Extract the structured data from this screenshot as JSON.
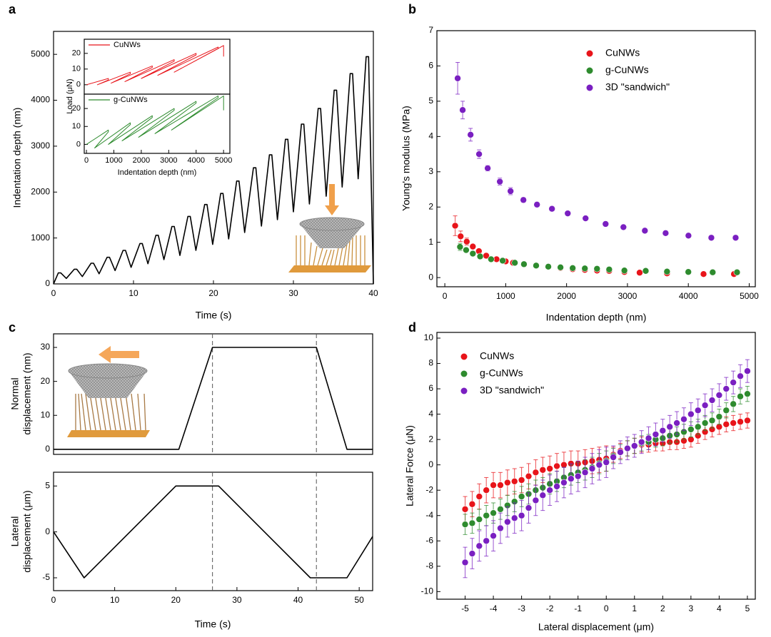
{
  "chart_data": [
    {
      "type": "line",
      "panel_label": "a",
      "x_label": "Time (s)",
      "y_label": "Indentation depth (nm)",
      "xlim": [
        0,
        40
      ],
      "ylim": [
        0,
        5500
      ],
      "xticks": [
        0,
        10,
        20,
        30,
        40
      ],
      "yticks": [
        0,
        1000,
        2000,
        3000,
        4000,
        5000
      ],
      "series": [
        {
          "color": "#000000",
          "x": [
            0,
            0.6,
            0.9,
            1.6,
            2.6,
            2.9,
            3.6,
            4.7,
            5.0,
            5.7,
            6.7,
            7.0,
            7.7,
            8.7,
            9.0,
            9.7,
            10.8,
            11.1,
            11.8,
            12.8,
            13.1,
            13.8,
            14.8,
            15.1,
            15.8,
            16.8,
            17.1,
            17.8,
            18.9,
            19.2,
            19.9,
            20.9,
            21.2,
            21.9,
            22.9,
            23.2,
            23.9,
            25.0,
            25.3,
            26.0,
            27.0,
            27.3,
            28.0,
            29.0,
            29.3,
            30.0,
            31.0,
            31.3,
            32.0,
            33.1,
            33.4,
            34.1,
            35.1,
            35.4,
            36.1,
            37.1,
            37.4,
            38.1,
            39.1,
            39.4,
            40.0
          ],
          "values": [
            0,
            240,
            240,
            120,
            320,
            320,
            160,
            450,
            450,
            220,
            580,
            580,
            290,
            730,
            730,
            360,
            880,
            880,
            440,
            1060,
            1060,
            530,
            1250,
            1250,
            620,
            1470,
            1470,
            730,
            1730,
            1730,
            860,
            1970,
            1970,
            980,
            2240,
            2240,
            1120,
            2530,
            2530,
            1260,
            2810,
            2810,
            1400,
            3150,
            3150,
            1570,
            3480,
            3480,
            1740,
            3820,
            3820,
            1910,
            4220,
            4220,
            2110,
            4580,
            4580,
            2290,
            4950,
            4950,
            0
          ]
        }
      ]
    },
    {
      "type": "line",
      "y_label": "Load (μN)",
      "legend": "upper left",
      "xlim": [
        -80,
        5230
      ],
      "ylim": [
        -6,
        29
      ],
      "yticks": [
        0,
        10,
        20
      ],
      "series": [
        {
          "name": "CuNWs",
          "color": "#e8141a",
          "x": [
            0,
            800,
            800,
            400,
            1600,
            1600,
            900,
            2400,
            2400,
            1400,
            3200,
            3200,
            2000,
            4000,
            4000,
            2600,
            4800,
            4800,
            3200,
            5000,
            5000
          ],
          "values": [
            0,
            4,
            3,
            0,
            8,
            7,
            1,
            12,
            11,
            2,
            16,
            15,
            4,
            20,
            19,
            6,
            24,
            23,
            8,
            25,
            18
          ]
        }
      ]
    },
    {
      "type": "line",
      "x_label": "Indentation depth (nm)",
      "legend": "upper left",
      "xlim": [
        -80,
        5230
      ],
      "ylim": [
        -5,
        28
      ],
      "xticks": [
        0,
        1000,
        2000,
        3000,
        4000,
        5000
      ],
      "yticks": [
        0,
        10,
        20
      ],
      "series": [
        {
          "name": "g-CuNWs",
          "color": "#2e8b2e",
          "x": [
            0,
            800,
            800,
            300,
            1600,
            1600,
            800,
            2400,
            2400,
            1300,
            3200,
            3200,
            1900,
            4000,
            4000,
            2500,
            4800,
            4800,
            3100,
            5000,
            5000
          ],
          "values": [
            0,
            8,
            7,
            -2,
            12,
            11,
            0,
            16,
            15,
            2,
            20,
            19,
            4,
            24,
            23,
            6,
            27,
            26,
            8,
            27,
            19
          ]
        }
      ]
    },
    {
      "type": "scatter",
      "panel_label": "b",
      "x_label": "Indentation depth (nm)",
      "y_label": "Young's modulus (MPa)",
      "legend": "upper right",
      "xlim": [
        -130,
        5100
      ],
      "ylim": [
        -0.26,
        7
      ],
      "xticks": [
        0,
        1000,
        2000,
        3000,
        4000,
        5000
      ],
      "yticks": [
        0,
        1,
        2,
        3,
        4,
        5,
        6,
        7
      ],
      "series": [
        {
          "name": "CuNWs",
          "color": "#e8141a",
          "x": [
            170,
            260,
            360,
            460,
            560,
            680,
            850,
            1000,
            1120,
            1300,
            1500,
            1700,
            1900,
            2100,
            2300,
            2500,
            2700,
            2950,
            3200,
            3650,
            4250,
            4750
          ],
          "values": [
            1.47,
            1.17,
            1.02,
            0.88,
            0.75,
            0.62,
            0.52,
            0.46,
            0.42,
            0.37,
            0.33,
            0.3,
            0.27,
            0.24,
            0.22,
            0.2,
            0.19,
            0.16,
            0.14,
            0.12,
            0.1,
            0.1
          ],
          "errors": [
            0.28,
            0.15,
            0.1,
            0.06,
            0.05,
            0.05,
            0.04,
            0.04,
            0.04,
            0.04,
            0.04,
            0.04,
            0.04,
            0.04,
            0.04,
            0.04,
            0.04,
            0.04,
            0.04,
            0.04,
            0.04,
            0.04
          ]
        },
        {
          "name": "g-CuNWs",
          "color": "#2e8b2e",
          "x": [
            250,
            350,
            460,
            580,
            760,
            950,
            1150,
            1300,
            1500,
            1700,
            1900,
            2100,
            2300,
            2500,
            2700,
            2950,
            3300,
            3650,
            4000,
            4400,
            4800
          ],
          "values": [
            0.87,
            0.78,
            0.68,
            0.6,
            0.52,
            0.48,
            0.42,
            0.38,
            0.34,
            0.31,
            0.29,
            0.27,
            0.26,
            0.25,
            0.23,
            0.2,
            0.19,
            0.17,
            0.16,
            0.15,
            0.15
          ],
          "errors": [
            0.1,
            0.06,
            0.05,
            0.04,
            0.04,
            0.04,
            0.04,
            0.04,
            0.04,
            0.04,
            0.04,
            0.04,
            0.04,
            0.04,
            0.04,
            0.04,
            0.04,
            0.04,
            0.04,
            0.04,
            0.04
          ]
        },
        {
          "name": "3D \"sandwich\"",
          "color": "#7a1fc1",
          "x": [
            211,
            293,
            423,
            563,
            704,
            904,
            1080,
            1291,
            1514,
            1760,
            2019,
            2312,
            2641,
            2934,
            3286,
            3627,
            4002,
            4378,
            4777
          ],
          "values": [
            5.65,
            4.75,
            4.05,
            3.5,
            3.1,
            2.72,
            2.45,
            2.2,
            2.07,
            1.95,
            1.82,
            1.68,
            1.52,
            1.43,
            1.33,
            1.26,
            1.19,
            1.13,
            1.13
          ],
          "errors": [
            0.45,
            0.25,
            0.18,
            0.12,
            0.08,
            0.1,
            0.1,
            0.07,
            0.07,
            0.07,
            0.06,
            0.06,
            0.06,
            0.06,
            0.06,
            0.06,
            0.06,
            0.06,
            0.06
          ]
        }
      ]
    },
    {
      "type": "line",
      "panel_label": "c",
      "y_label": [
        "Normal",
        "displacement (nm)"
      ],
      "xlim": [
        0,
        52.2
      ],
      "ylim": [
        -1.5,
        34
      ],
      "yticks": [
        0,
        10,
        20,
        30
      ],
      "vlines": [
        26,
        43
      ],
      "series": [
        {
          "color": "#000000",
          "x": [
            0,
            20.5,
            26,
            43,
            48,
            52.2
          ],
          "values": [
            0,
            0,
            30,
            30,
            0,
            0
          ]
        }
      ]
    },
    {
      "type": "line",
      "x_label": "Time (s)",
      "y_label": [
        "Lateral",
        "displacement (μm)"
      ],
      "xlim": [
        0,
        52.2
      ],
      "ylim": [
        -6.4,
        6.5
      ],
      "xticks": [
        0,
        10,
        20,
        30,
        40,
        50
      ],
      "yticks": [
        -5,
        0,
        5
      ],
      "vlines": [
        26,
        43
      ],
      "series": [
        {
          "color": "#000000",
          "x": [
            0,
            5,
            20,
            27,
            42,
            48,
            52.2
          ],
          "values": [
            0,
            -5,
            5,
            5,
            -5,
            -5,
            -0.5
          ]
        }
      ]
    },
    {
      "type": "scatter",
      "panel_label": "d",
      "x_label": "Lateral displacement (μm)",
      "y_label": "Lateral Force (μN)",
      "legend": "upper left",
      "xlim": [
        -6,
        5.28
      ],
      "ylim": [
        -10.6,
        10.45
      ],
      "xticks": [
        -5,
        -4,
        -3,
        -2,
        -1,
        0,
        1,
        2,
        3,
        4,
        5
      ],
      "yticks": [
        -10,
        -8,
        -6,
        -4,
        -2,
        0,
        2,
        4,
        6,
        8,
        10
      ],
      "x": [
        -5,
        -4.75,
        -4.5,
        -4.25,
        -4,
        -3.75,
        -3.5,
        -3.25,
        -3,
        -2.75,
        -2.5,
        -2.25,
        -2,
        -1.75,
        -1.5,
        -1.25,
        -1,
        -0.75,
        -0.5,
        -0.25,
        0,
        0.25,
        0.5,
        0.75,
        1,
        1.25,
        1.5,
        1.75,
        2,
        2.25,
        2.5,
        2.75,
        3,
        3.25,
        3.5,
        3.75,
        4,
        4.25,
        4.5,
        4.75,
        5
      ],
      "series": [
        {
          "name": "CuNWs",
          "color": "#e8141a",
          "values": [
            -3.5,
            -3.1,
            -2.5,
            -2.0,
            -1.6,
            -1.6,
            -1.4,
            -1.3,
            -1.2,
            -0.9,
            -0.6,
            -0.4,
            -0.3,
            -0.1,
            0.0,
            0.1,
            0.1,
            0.2,
            0.3,
            0.4,
            0.5,
            0.8,
            1.1,
            1.3,
            1.5,
            1.6,
            1.6,
            1.7,
            1.7,
            1.8,
            1.8,
            1.9,
            2.0,
            2.3,
            2.6,
            2.8,
            3.0,
            3.2,
            3.3,
            3.4,
            3.5
          ],
          "errors": [
            1.0,
            1.0,
            1.0,
            1.0,
            1.0,
            1.0,
            1.0,
            1.0,
            1.0,
            1.0,
            1.0,
            1.0,
            1.0,
            1.0,
            1.0,
            1.0,
            1.0,
            1.0,
            1.0,
            1.0,
            1.0,
            0.6,
            0.6,
            0.6,
            0.6,
            0.6,
            0.6,
            0.6,
            0.6,
            0.6,
            0.6,
            0.6,
            0.6,
            0.6,
            0.6,
            0.6,
            0.6,
            0.6,
            0.6,
            0.6,
            0.6
          ]
        },
        {
          "name": "g-CuNWs",
          "color": "#2e8b2e",
          "values": [
            -4.7,
            -4.6,
            -4.3,
            -4.0,
            -3.8,
            -3.5,
            -3.2,
            -2.9,
            -2.5,
            -2.3,
            -2.0,
            -1.8,
            -1.5,
            -1.3,
            -1.0,
            -0.8,
            -0.6,
            -0.4,
            -0.2,
            0.1,
            0.3,
            0.7,
            1.0,
            1.3,
            1.5,
            1.7,
            1.8,
            2.0,
            2.1,
            2.3,
            2.4,
            2.6,
            2.8,
            3.0,
            3.3,
            3.5,
            3.8,
            4.3,
            4.8,
            5.4,
            5.6
          ],
          "errors": [
            0.8,
            0.8,
            0.8,
            0.8,
            0.8,
            0.8,
            0.8,
            0.8,
            0.8,
            0.8,
            0.8,
            0.8,
            0.8,
            0.8,
            0.8,
            0.8,
            0.8,
            0.8,
            0.8,
            0.8,
            0.8,
            0.6,
            0.6,
            0.6,
            0.6,
            0.6,
            0.6,
            0.6,
            0.6,
            0.6,
            0.6,
            0.6,
            0.6,
            0.6,
            0.6,
            0.6,
            0.6,
            0.6,
            0.6,
            0.6,
            0.6
          ]
        },
        {
          "name": "3D \"sandwich\"",
          "color": "#7a1fc1",
          "values": [
            -7.7,
            -7.0,
            -6.4,
            -6.0,
            -5.6,
            -5.0,
            -4.5,
            -4.2,
            -4.0,
            -3.4,
            -2.8,
            -2.4,
            -2.0,
            -1.7,
            -1.4,
            -1.1,
            -0.9,
            -0.6,
            -0.3,
            0.0,
            0.2,
            0.6,
            1.0,
            1.3,
            1.5,
            1.8,
            2.1,
            2.4,
            2.7,
            3.0,
            3.3,
            3.6,
            4.0,
            4.3,
            4.7,
            5.1,
            5.5,
            6.0,
            6.5,
            7.0,
            7.4
          ],
          "errors": [
            1.2,
            1.2,
            1.2,
            1.2,
            1.2,
            1.2,
            1.2,
            1.2,
            1.2,
            1.2,
            1.2,
            1.2,
            1.2,
            1.2,
            1.2,
            1.2,
            1.2,
            1.2,
            1.2,
            1.2,
            1.2,
            0.9,
            0.9,
            0.9,
            0.9,
            0.9,
            0.9,
            0.9,
            0.9,
            0.9,
            0.9,
            0.9,
            0.9,
            0.9,
            0.9,
            0.9,
            0.9,
            0.9,
            0.9,
            0.9,
            0.9
          ]
        }
      ]
    }
  ]
}
